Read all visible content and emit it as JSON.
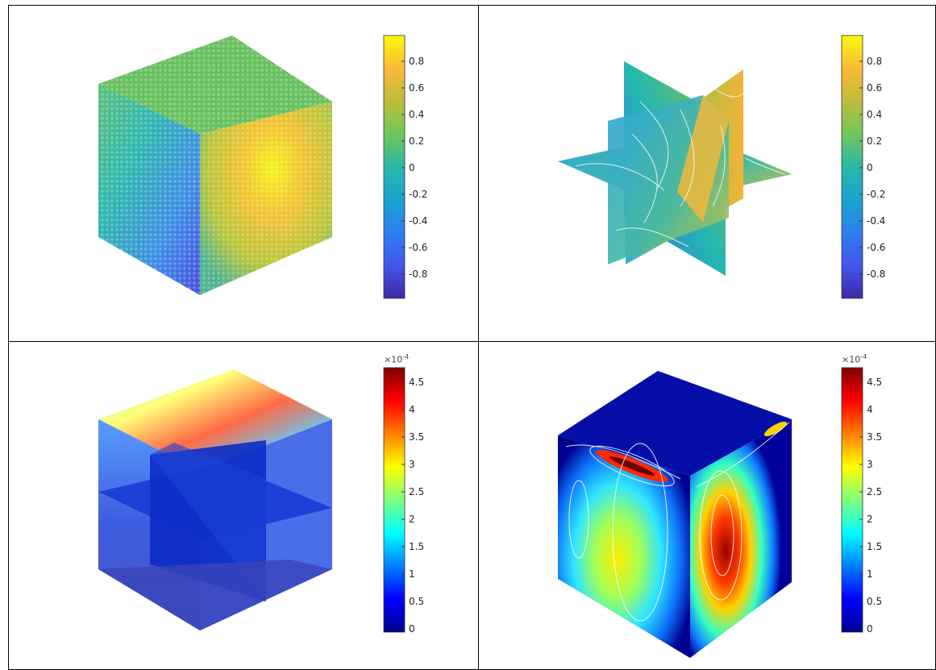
{
  "panels": [
    {
      "id": "top-left",
      "colormap": "parula",
      "colorbar": {
        "ticks": [
          "0.8",
          "0.6",
          "0.4",
          "0.2",
          "0",
          "-0.2",
          "-0.4",
          "-0.6",
          "-0.8"
        ],
        "multiplier": ""
      }
    },
    {
      "id": "top-right",
      "colormap": "parula",
      "colorbar": {
        "ticks": [
          "0.8",
          "0.6",
          "0.4",
          "0.2",
          "0",
          "-0.2",
          "-0.4",
          "-0.6",
          "-0.8"
        ],
        "multiplier": ""
      }
    },
    {
      "id": "bottom-left",
      "colormap": "jet",
      "colorbar": {
        "ticks": [
          "4.5",
          "4",
          "3.5",
          "3",
          "2.5",
          "2",
          "1.5",
          "1",
          "0.5",
          "0"
        ],
        "multiplier": "×10",
        "exponent": "-4"
      }
    },
    {
      "id": "bottom-right",
      "colormap": "jet",
      "colorbar": {
        "ticks": [
          "4.5",
          "4",
          "3.5",
          "3",
          "2.5",
          "2",
          "1.5",
          "1",
          "0.5",
          "0"
        ],
        "multiplier": "×10",
        "exponent": "-4"
      }
    }
  ],
  "colors": {
    "parula_top": "#f9fb0e",
    "parula_mid": "#12b6b1",
    "parula_bottom": "#3e26a8",
    "jet_top": "#800000",
    "jet_bottom": "#00008f"
  }
}
